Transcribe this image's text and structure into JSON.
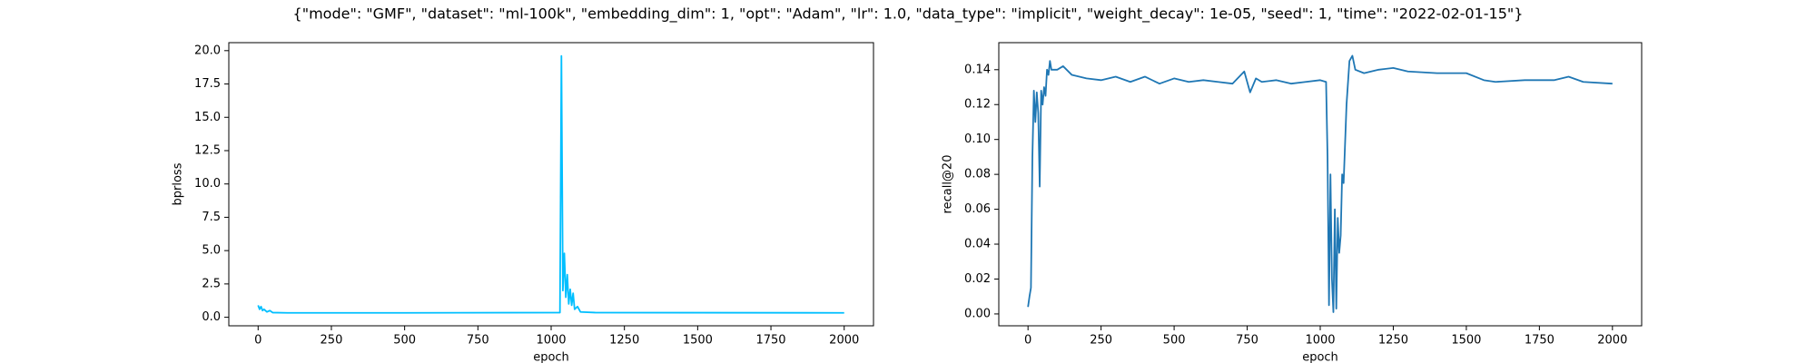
{
  "title": "{\"mode\": \"GMF\", \"dataset\": \"ml-100k\", \"embedding_dim\": 1, \"opt\": \"Adam\", \"lr\": 1.0, \"data_type\": \"implicit\", \"weight_decay\": 1e-05, \"seed\": 1, \"time\": \"2022-02-01-15\"}",
  "chart_data": [
    {
      "type": "line",
      "xlabel": "epoch",
      "ylabel": "bprloss",
      "xlim": [
        -100,
        2100
      ],
      "xticks": [
        0,
        250,
        500,
        750,
        1000,
        1250,
        1500,
        1750,
        2000
      ],
      "ylim": [
        -0.64,
        20.6
      ],
      "yticks": [
        {
          "value": 0,
          "label": "0.0"
        },
        2.5,
        {
          "value": 5,
          "label": "5.0"
        },
        7.5,
        {
          "value": 10,
          "label": "10.0"
        },
        12.5,
        {
          "value": 15,
          "label": "15.0"
        },
        17.5,
        {
          "value": 20,
          "label": "20.0"
        }
      ],
      "series": [
        {
          "color": "#00bfff",
          "x": [
            0,
            5,
            10,
            15,
            20,
            30,
            40,
            50,
            100,
            500,
            1030,
            1035,
            1040,
            1045,
            1050,
            1055,
            1060,
            1065,
            1070,
            1075,
            1080,
            1090,
            1100,
            1150,
            2000
          ],
          "values": [
            0.9,
            0.6,
            0.8,
            0.5,
            0.6,
            0.4,
            0.5,
            0.35,
            0.33,
            0.33,
            0.35,
            19.6,
            2.0,
            4.8,
            1.5,
            3.2,
            1.0,
            2.1,
            0.9,
            1.8,
            0.6,
            0.8,
            0.4,
            0.35,
            0.33
          ]
        }
      ]
    },
    {
      "type": "line",
      "xlabel": "epoch",
      "ylabel": "recall@20",
      "xlim": [
        -100,
        2100
      ],
      "xticks": [
        0,
        250,
        500,
        750,
        1000,
        1250,
        1500,
        1750,
        2000
      ],
      "ylim": [
        -0.0068,
        0.1555
      ],
      "yticks": [
        {
          "value": 0,
          "label": "0.00"
        },
        0.02,
        0.04,
        0.06,
        0.08,
        {
          "value": 0.1,
          "label": "0.10"
        },
        0.12,
        0.14
      ],
      "series": [
        {
          "color": "#1f77b4",
          "x": [
            0,
            5,
            10,
            15,
            20,
            25,
            30,
            35,
            40,
            45,
            50,
            55,
            60,
            65,
            70,
            75,
            80,
            100,
            120,
            150,
            200,
            250,
            300,
            350,
            400,
            450,
            500,
            550,
            600,
            650,
            700,
            740,
            760,
            780,
            800,
            850,
            900,
            950,
            1000,
            1020,
            1025,
            1030,
            1035,
            1040,
            1045,
            1050,
            1055,
            1060,
            1065,
            1070,
            1075,
            1080,
            1090,
            1100,
            1110,
            1120,
            1150,
            1200,
            1250,
            1300,
            1400,
            1500,
            1560,
            1600,
            1700,
            1800,
            1850,
            1900,
            2000
          ],
          "values": [
            0.004,
            0.01,
            0.015,
            0.09,
            0.128,
            0.11,
            0.127,
            0.115,
            0.073,
            0.128,
            0.12,
            0.13,
            0.125,
            0.14,
            0.137,
            0.145,
            0.14,
            0.14,
            0.142,
            0.137,
            0.135,
            0.134,
            0.136,
            0.133,
            0.136,
            0.132,
            0.135,
            0.133,
            0.134,
            0.133,
            0.132,
            0.139,
            0.127,
            0.135,
            0.133,
            0.134,
            0.132,
            0.133,
            0.134,
            0.133,
            0.09,
            0.005,
            0.08,
            0.02,
            0.001,
            0.06,
            0.003,
            0.055,
            0.035,
            0.045,
            0.08,
            0.075,
            0.12,
            0.145,
            0.148,
            0.14,
            0.138,
            0.14,
            0.141,
            0.139,
            0.138,
            0.138,
            0.134,
            0.133,
            0.134,
            0.134,
            0.136,
            0.133,
            0.132
          ]
        }
      ]
    }
  ]
}
